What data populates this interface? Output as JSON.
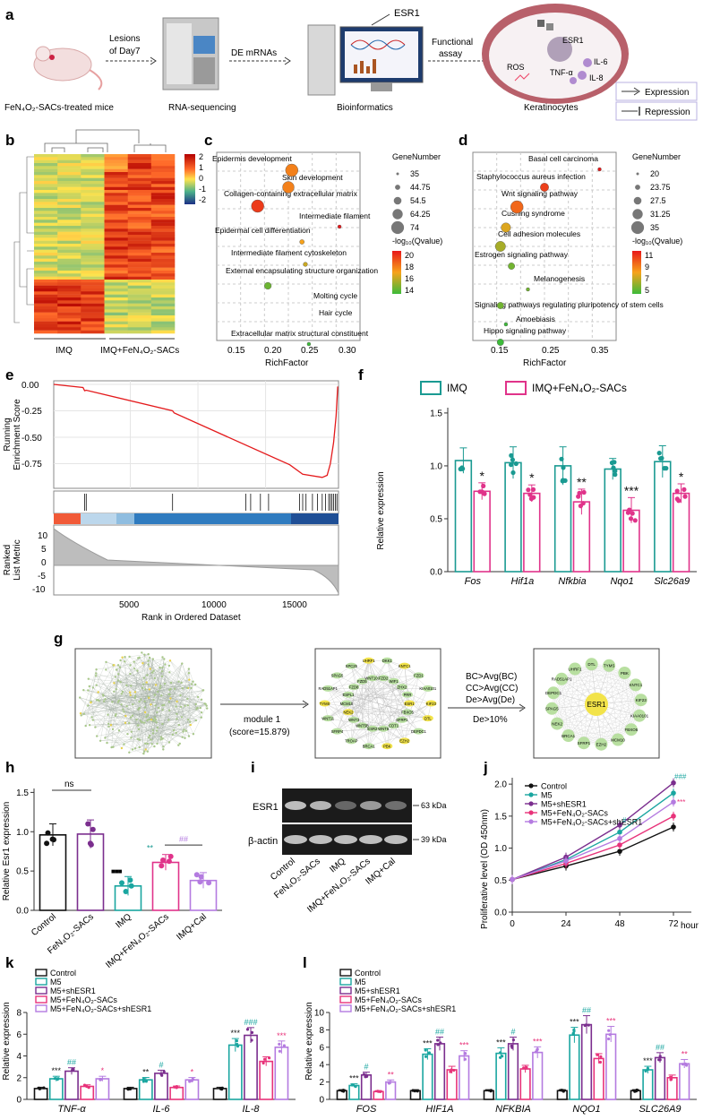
{
  "panels": {
    "a": {
      "letter": "a",
      "mouse_label": "FeN₄O₂-SACs-treated mice",
      "lesions_label_1": "Lesions",
      "lesions_label_2": "of Day7",
      "seq_label": "RNA-sequencing",
      "de_label": "DE mRNAs",
      "bioinfo_label": "Bioinformatics",
      "esr1_top": "ESR1",
      "functional_1": "Functional",
      "functional_2": "assay",
      "kera_label": "Keratinocytes",
      "cell_esr1": "ESR1",
      "cell_ros": "ROS",
      "cell_il6": "IL-6",
      "cell_tnf": "TNF-α",
      "cell_il8": "IL-8",
      "legend_expression": "Expression",
      "legend_repression": "Repression"
    },
    "b": {
      "letter": "b",
      "scale_ticks": [
        "2",
        "1",
        "0",
        "-1",
        "-2"
      ],
      "group1": "IMQ",
      "group2": "IMQ+FeN₄O₂-SACs"
    },
    "c": {
      "letter": "c",
      "terms": [
        "Epidermis development",
        "Skin development",
        "Collagen-containing extracellular matrix",
        "Intermediate filament",
        "Epidermal cell differentiation",
        "Intermediate filament cytoskeleton",
        "External encapsulating structure organization",
        "Molting cycle",
        "Hair cycle",
        "Extracellular matrix structural constituent"
      ],
      "xlabel": "RichFactor",
      "xticks": [
        "0.15",
        "0.20",
        "0.25",
        "0.30"
      ],
      "gn_title": "GeneNumber",
      "gn_values": [
        "35",
        "44.75",
        "54.5",
        "64.25",
        "74"
      ],
      "q_title": "-log₁₀(Qvalue)",
      "q_values": [
        "20",
        "18",
        "16",
        "14"
      ]
    },
    "d": {
      "letter": "d",
      "terms": [
        "Basal cell carcinoma",
        "Staphylococcus aureus infection",
        "Wnt signaling pathway",
        "Cushing syndrome",
        "Cell adhesion molecules",
        "Estrogen signaling pathway",
        "Melanogenesis",
        "Signaling pathways regulating pluripotency of stem cells",
        "Amoebiasis",
        "Hippo signaling pathway"
      ],
      "xlabel": "RichFactor",
      "xticks": [
        "0.15",
        "0.25",
        "0.35"
      ],
      "gn_title": "GeneNumber",
      "gn_values": [
        "20",
        "23.75",
        "27.5",
        "31.25",
        "35"
      ],
      "q_title": "-log₁₀(Qvalue)",
      "q_values": [
        "11",
        "9",
        "7",
        "5"
      ]
    },
    "e": {
      "letter": "e",
      "ylabel1_a": "Running",
      "ylabel1_b": "Enrichment Score",
      "yticks1": [
        "0.00",
        "-0.25",
        "-0.50",
        "-0.75"
      ],
      "ylabel2_a": "Ranked",
      "ylabel2_b": "List Metric",
      "yticks2": [
        "10",
        "5",
        "0",
        "-5",
        "-10"
      ],
      "xlabel": "Rank in Ordered Dataset",
      "xticks": [
        "5000",
        "10000",
        "15000"
      ]
    },
    "f": {
      "letter": "f",
      "legend_imq": "IMQ",
      "legend_sacs": "IMQ+FeN₄O₂-SACs",
      "ylabel": "Relative expression",
      "yticks": [
        "0.0",
        "0.5",
        "1.0",
        "1.5"
      ],
      "genes": [
        "Fos",
        "Hif1a",
        "Nfkbia",
        "Nqo1",
        "Slc26a9"
      ],
      "sig": [
        "*",
        "*",
        "**",
        "***",
        "*"
      ]
    },
    "g": {
      "letter": "g",
      "module_1": "module 1",
      "module_2": "(score=15.879)",
      "criteria": [
        "BC>Avg(BC)",
        "CC>Avg(CC)",
        "De>Avg(De)",
        "De>10%"
      ],
      "hub_center": "ESR1",
      "hub_nodes": [
        "UHRF1",
        "DTL",
        "TYMS",
        "PBK",
        "KNTC1",
        "KIF23",
        "KIAA0101",
        "FBXO5",
        "MCM10",
        "EZH2",
        "SFRP1",
        "BRCA1",
        "NEK2",
        "SPAG5",
        "DEPDC1",
        "RAD51AP1"
      ],
      "module_nodes": [
        "KIF23",
        "DTL",
        "DEPDC1",
        "EZH2",
        "PBK",
        "BRCA1",
        "TROAP",
        "SFRP4",
        "WNT11",
        "TYMS",
        "RAD51AP1",
        "SPAG5",
        "SPC25",
        "UHRF1",
        "DKK1",
        "KNTC1",
        "FZD1",
        "KIAA0101",
        "ESR1",
        "FBXO5",
        "SFRP1",
        "CDT1",
        "WNT6",
        "ESR2",
        "WNT5B",
        "WNT3",
        "NEK2",
        "MCM10",
        "ESPL1",
        "FZD8",
        "FZD5",
        "WNT10B",
        "FZD2",
        "WIF1",
        "ZHX2",
        "PRR"
      ]
    },
    "h": {
      "letter": "h",
      "ylabel": "Relative Esr1 expression",
      "yticks": [
        "0.0",
        "0.5",
        "1.0",
        "1.5"
      ],
      "groups": [
        "Control",
        "FeN₄O₂-SACs",
        "IMQ",
        "IMQ+FeN₄O₂-SACs",
        "IMQ+Cal"
      ],
      "ns": "ns",
      "sig_imq": "■■■",
      "sig_sacs": "**",
      "sig_cal": "##"
    },
    "i": {
      "letter": "i",
      "row1": "ESR1",
      "row2": "β-actin",
      "kda1": "63 kDa",
      "kda2": "39 kDa",
      "lanes": [
        "Control",
        "FeN₄O₂-SACs",
        "IMQ",
        "IMQ+FeN₄O₂-SACs",
        "IMQ+Cal"
      ]
    },
    "j": {
      "letter": "j",
      "ylabel": "Proliferative level (OD 450nm)",
      "xunit": "hour",
      "sig_top": "###",
      "sig_mid": "***",
      "sig_48": "#"
    },
    "k": {
      "letter": "k",
      "ylabel": "Relative expression",
      "yticks": [
        "0",
        "2",
        "4",
        "6",
        "8"
      ],
      "genes": [
        "TNF-α",
        "IL-6",
        "IL-8"
      ],
      "sig": [
        [
          "***",
          "##",
          "*"
        ],
        [
          "**",
          "#",
          "*"
        ],
        [
          "***",
          "###",
          "***"
        ]
      ]
    },
    "l": {
      "letter": "l",
      "ylabel": "Relative expression",
      "yticks": [
        "0",
        "2",
        "4",
        "6",
        "8",
        "10"
      ],
      "genes": [
        "FOS",
        "HIF1A",
        "NFKBIA",
        "NQO1",
        "SLC26A9"
      ],
      "sig": [
        [
          "***",
          "#",
          "**"
        ],
        [
          "***",
          "##",
          "***"
        ],
        [
          "***",
          "#",
          "***"
        ],
        [
          "***",
          "##",
          "***"
        ],
        [
          "***",
          "##",
          "**"
        ]
      ]
    },
    "legend_kl": [
      "Control",
      "M5",
      "M5+shESR1",
      "M5+FeN₄O₂-SACs",
      "M5+FeN₄O₂-SACs+shESR1"
    ]
  },
  "colors": {
    "imq_teal": "#1a9a92",
    "sacs_pink": "#e0338a",
    "control": "#111111",
    "m5": "#1aa6a0",
    "shESR1": "#7b2e8e",
    "m5_sacs": "#e8337a",
    "m5_sacs_sh": "#b47be0",
    "gsea_line": "#e41a1c"
  },
  "chart_data": [
    {
      "panel": "c",
      "type": "scatter",
      "xlabel": "RichFactor",
      "xlim": [
        0.12,
        0.33
      ],
      "points": [
        {
          "term": "Epidermis development",
          "x": 0.23,
          "genes": 74,
          "q": 17
        },
        {
          "term": "Skin development",
          "x": 0.225,
          "genes": 70,
          "q": 17
        },
        {
          "term": "Collagen-containing extracellular matrix",
          "x": 0.18,
          "genes": 74,
          "q": 19
        },
        {
          "term": "Intermediate filament",
          "x": 0.3,
          "genes": 35,
          "q": 20
        },
        {
          "term": "Epidermal cell differentiation",
          "x": 0.245,
          "genes": 40,
          "q": 16
        },
        {
          "term": "Intermediate filament cytoskeleton",
          "x": 0.25,
          "genes": 38,
          "q": 15
        },
        {
          "term": "External encapsulating structure organization",
          "x": 0.195,
          "genes": 50,
          "q": 13
        },
        {
          "term": "Extracellular matrix structural constituent",
          "x": 0.255,
          "genes": 35,
          "q": 12
        }
      ]
    },
    {
      "panel": "d",
      "type": "scatter",
      "xlabel": "RichFactor",
      "xlim": [
        0.12,
        0.38
      ],
      "points": [
        {
          "term": "Basal cell carcinoma",
          "x": 0.35,
          "genes": 20,
          "q": 11
        },
        {
          "term": "Staphylococcus aureus infection",
          "x": 0.25,
          "genes": 28,
          "q": 10
        },
        {
          "term": "Wnt signaling pathway",
          "x": 0.2,
          "genes": 35,
          "q": 9
        },
        {
          "term": "Cushing syndrome",
          "x": 0.18,
          "genes": 30,
          "q": 7
        },
        {
          "term": "Cell adhesion molecules",
          "x": 0.17,
          "genes": 31,
          "q": 6
        },
        {
          "term": "Estrogen signaling pathway",
          "x": 0.19,
          "genes": 25,
          "q": 5
        },
        {
          "term": "Melanogenesis",
          "x": 0.22,
          "genes": 20,
          "q": 5
        },
        {
          "term": "Signaling pathways regulating pluripotency of stem cells",
          "x": 0.17,
          "genes": 25,
          "q": 5
        },
        {
          "term": "Amoebiasis",
          "x": 0.18,
          "genes": 20,
          "q": 4
        },
        {
          "term": "Hippo signaling pathway",
          "x": 0.17,
          "genes": 25,
          "q": 4
        }
      ]
    },
    {
      "panel": "f",
      "type": "bar",
      "categories": [
        "Fos",
        "Hif1a",
        "Nfkbia",
        "Nqo1",
        "Slc26a9"
      ],
      "ylim": [
        0,
        1.55
      ],
      "series": [
        {
          "name": "IMQ",
          "values": [
            1.05,
            1.03,
            1.0,
            0.97,
            1.04
          ],
          "sd": [
            0.12,
            0.15,
            0.18,
            0.1,
            0.15
          ]
        },
        {
          "name": "IMQ+FeN₄O₂-SACs",
          "values": [
            0.76,
            0.74,
            0.66,
            0.58,
            0.74
          ],
          "sd": [
            0.08,
            0.08,
            0.12,
            0.12,
            0.09
          ]
        }
      ]
    },
    {
      "panel": "h",
      "type": "bar",
      "categories": [
        "Control",
        "FeN₄O₂-SACs",
        "IMQ",
        "IMQ+FeN₄O₂-SACs",
        "IMQ+Cal"
      ],
      "ylim": [
        0,
        1.55
      ],
      "values": [
        0.96,
        0.97,
        0.31,
        0.61,
        0.38
      ],
      "sd": [
        0.14,
        0.18,
        0.12,
        0.1,
        0.1
      ]
    },
    {
      "panel": "j",
      "type": "line",
      "x": [
        0,
        24,
        48,
        72
      ],
      "xlim": [
        0,
        80
      ],
      "ylim": [
        0,
        2.1
      ],
      "xticks": [
        0,
        24,
        48,
        72
      ],
      "yticks": [
        0,
        0.5,
        1.0,
        1.5,
        2.0
      ],
      "series": [
        {
          "name": "Control",
          "values": [
            0.51,
            0.72,
            0.95,
            1.33
          ]
        },
        {
          "name": "M5",
          "values": [
            0.51,
            0.82,
            1.25,
            1.86
          ]
        },
        {
          "name": "M5+shESR1",
          "values": [
            0.51,
            0.86,
            1.36,
            2.02
          ]
        },
        {
          "name": "M5+FeN₄O₂-SACs",
          "values": [
            0.51,
            0.76,
            1.05,
            1.5
          ]
        },
        {
          "name": "M5+FeN₄O₂-SACs+shESR1",
          "values": [
            0.51,
            0.8,
            1.15,
            1.72
          ]
        }
      ]
    },
    {
      "panel": "k",
      "type": "bar",
      "categories": [
        "TNF-α",
        "IL-6",
        "IL-8"
      ],
      "ylim": [
        0,
        8
      ],
      "series": [
        {
          "name": "Control",
          "values": [
            1.0,
            1.0,
            1.0
          ]
        },
        {
          "name": "M5",
          "values": [
            1.9,
            1.8,
            5.0
          ]
        },
        {
          "name": "M5+shESR1",
          "values": [
            2.6,
            2.4,
            5.9
          ]
        },
        {
          "name": "M5+FeN₄O₂-SACs",
          "values": [
            1.2,
            1.1,
            3.5
          ]
        },
        {
          "name": "M5+FeN₄O₂-SACs+shESR1",
          "values": [
            1.9,
            1.8,
            4.8
          ]
        }
      ]
    },
    {
      "panel": "l",
      "type": "bar",
      "categories": [
        "FOS",
        "HIF1A",
        "NFKBIA",
        "NQO1",
        "SLC26A9"
      ],
      "ylim": [
        0,
        10
      ],
      "series": [
        {
          "name": "Control",
          "values": [
            1.0,
            1.0,
            1.0,
            1.0,
            1.0
          ]
        },
        {
          "name": "M5",
          "values": [
            1.6,
            5.2,
            5.3,
            7.4,
            3.4
          ]
        },
        {
          "name": "M5+shESR1",
          "values": [
            2.8,
            6.4,
            6.4,
            8.6,
            4.8
          ]
        },
        {
          "name": "M5+FeN₄O₂-SACs",
          "values": [
            0.9,
            3.4,
            3.5,
            4.7,
            2.5
          ]
        },
        {
          "name": "M5+FeN₄O₂-SACs+shESR1",
          "values": [
            2.0,
            5.0,
            5.4,
            7.5,
            4.1
          ]
        }
      ]
    }
  ]
}
